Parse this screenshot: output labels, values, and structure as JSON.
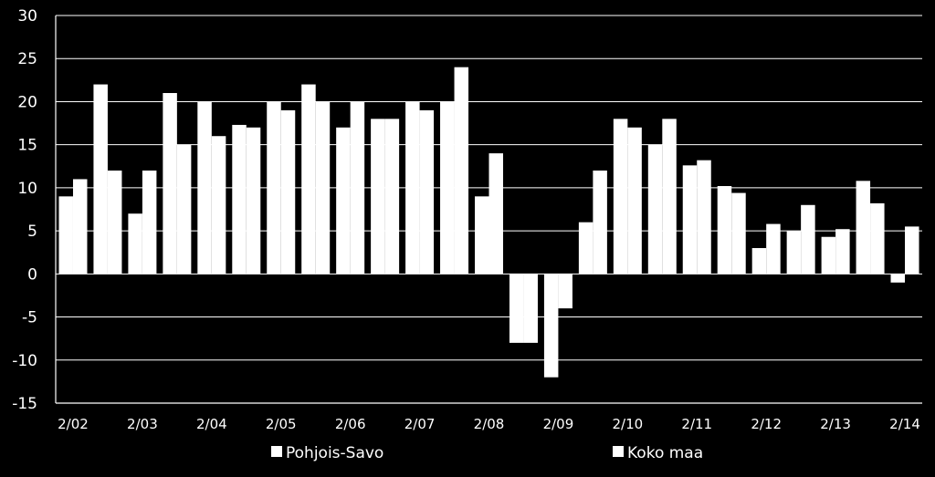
{
  "chart_data": {
    "type": "bar",
    "title": "",
    "xlabel": "",
    "ylabel": "",
    "ylim": [
      -15,
      30
    ],
    "yticks": [
      30,
      25,
      20,
      15,
      10,
      5,
      0,
      -5,
      -10,
      -15
    ],
    "grid": true,
    "legend_position": "bottom",
    "categories": [
      "2/02",
      "",
      "2/03",
      "",
      "2/04",
      "",
      "2/05",
      "",
      "2/06",
      "",
      "2/07",
      "",
      "2/08",
      "",
      "2/09",
      "",
      "2/10",
      "",
      "2/11",
      "",
      "2/12",
      "",
      "2/13",
      "",
      "2/14"
    ],
    "series": [
      {
        "name": "Pohjois-Savo",
        "color": "#ffffff",
        "values": [
          9,
          22,
          7,
          21,
          20,
          17.3,
          20,
          22,
          17,
          18,
          20,
          20,
          9,
          -8,
          -12,
          6,
          18,
          15,
          12.6,
          10.2,
          3,
          5,
          4.3,
          10.8,
          -1
        ]
      },
      {
        "name": "Koko maa",
        "color": "#ffffff",
        "values": [
          11,
          12,
          12,
          15,
          16,
          17,
          19,
          20,
          20,
          18,
          19,
          24,
          14,
          -8,
          -4,
          12,
          17,
          18,
          13.2,
          9.4,
          5.8,
          8,
          5.2,
          8.2,
          5.5
        ]
      }
    ]
  }
}
